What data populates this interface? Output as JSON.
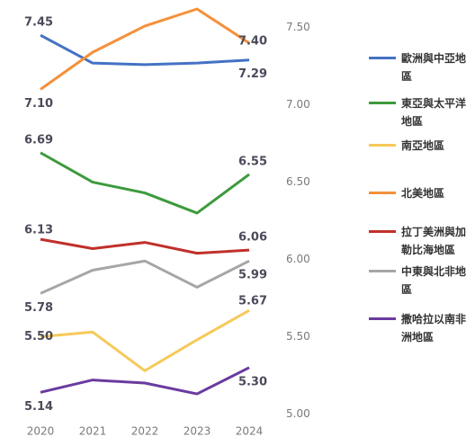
{
  "chart_data": {
    "type": "line",
    "categories": [
      "2020",
      "2021",
      "2022",
      "2023",
      "2024"
    ],
    "ylim": [
      4.95,
      7.62
    ],
    "yticks": [
      {
        "value": 5.0,
        "label": "5.00"
      },
      {
        "value": 5.5,
        "label": "5.50"
      },
      {
        "value": 6.0,
        "label": "6.00"
      },
      {
        "value": 6.5,
        "label": "6.50"
      },
      {
        "value": 7.0,
        "label": "7.00"
      },
      {
        "value": 7.5,
        "label": "7.50"
      }
    ],
    "series": [
      {
        "name": "歐洲與中亞地區",
        "color": "#4472c4",
        "values": [
          7.45,
          7.27,
          7.26,
          7.27,
          7.29
        ],
        "value_labels": [
          "7.45",
          null,
          null,
          null,
          "7.29"
        ]
      },
      {
        "name": "東亞與太平洋地區",
        "color": "#3d9a3d",
        "values": [
          6.69,
          6.5,
          6.43,
          6.3,
          6.55
        ],
        "value_labels": [
          "6.69",
          null,
          null,
          null,
          "6.55"
        ]
      },
      {
        "name": "南亞地區",
        "color": "#f6c95a",
        "values": [
          5.5,
          5.53,
          5.28,
          5.48,
          5.67
        ],
        "value_labels": [
          "5.50",
          null,
          null,
          null,
          "5.67"
        ]
      },
      {
        "name": "北美地區",
        "color": "#f5903a",
        "values": [
          7.1,
          7.34,
          7.51,
          7.62,
          7.4
        ],
        "value_labels": [
          "7.10",
          null,
          null,
          null,
          "7.40"
        ]
      },
      {
        "name": "拉丁美洲與加勒比海地區",
        "color": "#c0302a",
        "values": [
          6.13,
          6.07,
          6.11,
          6.04,
          6.06
        ],
        "value_labels": [
          "6.13",
          null,
          null,
          null,
          "6.06"
        ]
      },
      {
        "name": "中東與北非地區",
        "color": "#a6a6a6",
        "values": [
          5.78,
          5.93,
          5.99,
          5.82,
          5.99
        ],
        "value_labels": [
          "5.78",
          null,
          null,
          null,
          "5.99"
        ]
      },
      {
        "name": "撒哈拉以南非洲地區",
        "color": "#6a3b9f",
        "values": [
          5.14,
          5.22,
          5.2,
          5.13,
          5.3
        ],
        "value_labels": [
          "5.14",
          null,
          null,
          null,
          "5.30"
        ]
      }
    ]
  }
}
